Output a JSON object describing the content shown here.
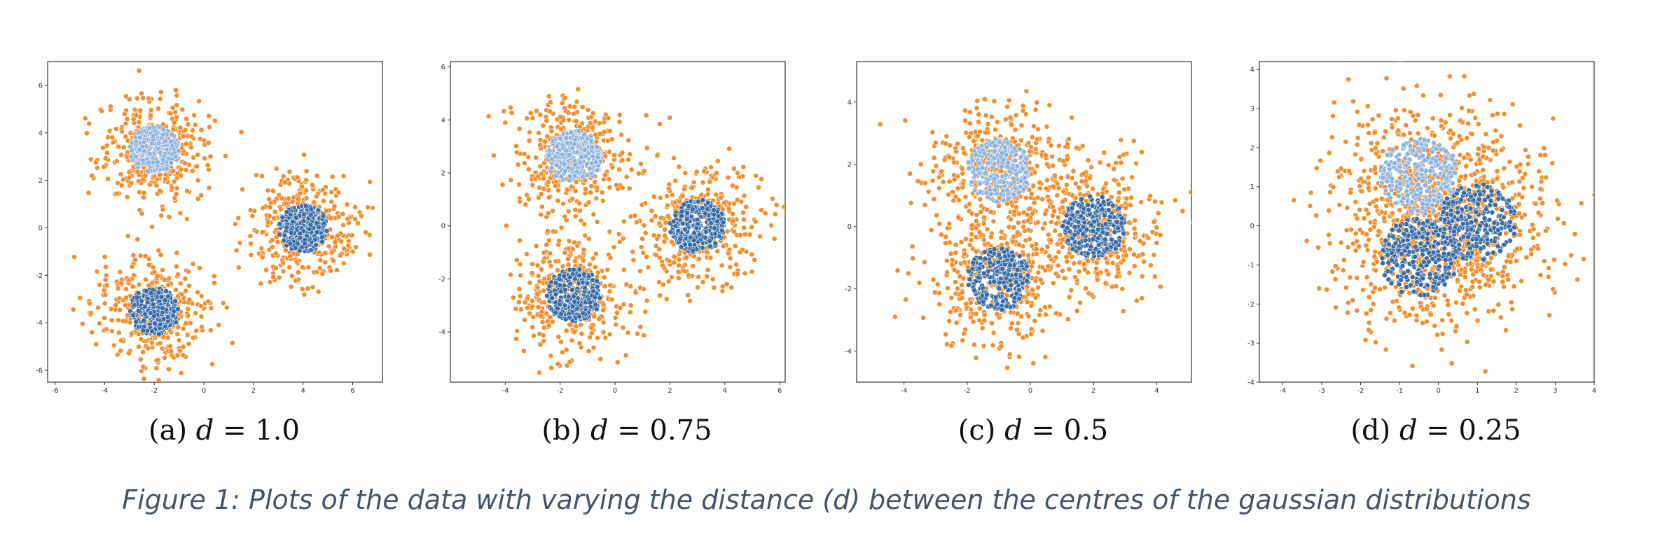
{
  "figure_caption": "Figure 1: Plots of the data with varying the distance (d) between the centres of the gaussian distributions",
  "colors": {
    "wide_cluster": "#f28e2b",
    "tight_cluster_top": "#8fb4de",
    "tight_cluster": "#3a6ea8",
    "point_edge": "#ffffff"
  },
  "chart_data": [
    {
      "type": "scatter",
      "caption_prefix": "(a) ",
      "caption_var": "d",
      "caption_suffix": " = 1.0",
      "xlim": [
        -6.3,
        7.2
      ],
      "ylim": [
        -6.5,
        7.0
      ],
      "xticks": [
        -6,
        -4,
        -2,
        0,
        2,
        4,
        6
      ],
      "yticks": [
        -6,
        -4,
        -2,
        0,
        2,
        4,
        6
      ],
      "clusters": [
        {
          "center": [
            -2.0,
            3.3
          ],
          "wide_sigma": 1.1,
          "tight_radius": 1.0,
          "tight_color": "tight_cluster_top",
          "wide_n": 380,
          "tight_n": 260
        },
        {
          "center": [
            4.0,
            0.0
          ],
          "wide_sigma": 1.1,
          "tight_radius": 1.0,
          "tight_color": "tight_cluster",
          "wide_n": 380,
          "tight_n": 260
        },
        {
          "center": [
            -2.0,
            -3.5
          ],
          "wide_sigma": 1.1,
          "tight_radius": 1.0,
          "tight_color": "tight_cluster",
          "wide_n": 380,
          "tight_n": 260
        }
      ]
    },
    {
      "type": "scatter",
      "caption_prefix": "(b) ",
      "caption_var": "d",
      "caption_suffix": " = 0.75",
      "xlim": [
        -6.0,
        6.2
      ],
      "ylim": [
        -5.9,
        6.2
      ],
      "xticks": [
        -4,
        -2,
        0,
        2,
        4,
        6
      ],
      "yticks": [
        -4,
        -2,
        0,
        2,
        4,
        6
      ],
      "clusters": [
        {
          "center": [
            -1.5,
            2.6
          ],
          "wide_sigma": 1.1,
          "tight_radius": 1.0,
          "tight_color": "tight_cluster_top",
          "wide_n": 380,
          "tight_n": 260
        },
        {
          "center": [
            3.0,
            0.0
          ],
          "wide_sigma": 1.1,
          "tight_radius": 1.0,
          "tight_color": "tight_cluster",
          "wide_n": 380,
          "tight_n": 260
        },
        {
          "center": [
            -1.5,
            -2.6
          ],
          "wide_sigma": 1.1,
          "tight_radius": 1.0,
          "tight_color": "tight_cluster",
          "wide_n": 380,
          "tight_n": 260
        }
      ]
    },
    {
      "type": "scatter",
      "caption_prefix": "(c) ",
      "caption_var": "d",
      "caption_suffix": " = 0.5",
      "xlim": [
        -5.5,
        5.1
      ],
      "ylim": [
        -5.0,
        5.3
      ],
      "xticks": [
        -4,
        -2,
        0,
        2,
        4
      ],
      "yticks": [
        -4,
        -2,
        0,
        2,
        4
      ],
      "clusters": [
        {
          "center": [
            -1.0,
            1.8
          ],
          "wide_sigma": 1.1,
          "tight_radius": 1.0,
          "tight_color": "tight_cluster_top",
          "wide_n": 380,
          "tight_n": 260
        },
        {
          "center": [
            2.0,
            0.0
          ],
          "wide_sigma": 1.1,
          "tight_radius": 1.0,
          "tight_color": "tight_cluster",
          "wide_n": 380,
          "tight_n": 260
        },
        {
          "center": [
            -1.0,
            -1.7
          ],
          "wide_sigma": 1.1,
          "tight_radius": 1.0,
          "tight_color": "tight_cluster",
          "wide_n": 380,
          "tight_n": 260
        }
      ]
    },
    {
      "type": "scatter",
      "caption_prefix": "(d) ",
      "caption_var": "d",
      "caption_suffix": " = 0.25",
      "xlim": [
        -4.6,
        4.0
      ],
      "ylim": [
        -4.0,
        4.2
      ],
      "xticks": [
        -4,
        -3,
        -2,
        -1,
        0,
        1,
        2,
        3,
        4
      ],
      "yticks": [
        -4,
        -3,
        -2,
        -1,
        0,
        1,
        2,
        3,
        4
      ],
      "clusters": [
        {
          "center": [
            -0.5,
            1.3
          ],
          "wide_sigma": 1.1,
          "tight_radius": 1.0,
          "tight_color": "tight_cluster_top",
          "wide_n": 380,
          "tight_n": 260
        },
        {
          "center": [
            1.0,
            0.1
          ],
          "wide_sigma": 1.1,
          "tight_radius": 1.0,
          "tight_color": "tight_cluster",
          "wide_n": 380,
          "tight_n": 260
        },
        {
          "center": [
            -0.5,
            -0.8
          ],
          "wide_sigma": 1.1,
          "tight_radius": 1.0,
          "tight_color": "tight_cluster",
          "wide_n": 380,
          "tight_n": 260
        }
      ]
    }
  ]
}
